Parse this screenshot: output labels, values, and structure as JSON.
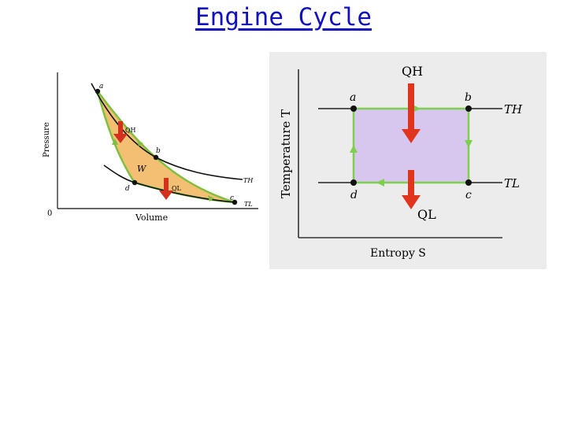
{
  "title": "Engine Cycle",
  "pv_diagram": {
    "x_axis_label": "Volume",
    "y_axis_label": "Pressure",
    "origin_label": "0",
    "points": [
      "a",
      "b",
      "c",
      "d"
    ],
    "work_label": "W",
    "heat_in_label": "QH",
    "heat_out_label": "QL",
    "isotherm_hot_label": "TH",
    "isotherm_cold_label": "TL",
    "cycle_fill_color": "#f3bf72",
    "cycle_path_color": "#7fbf3f",
    "arrow_color": "#d4301e"
  },
  "ts_diagram": {
    "x_axis_label": "Entropy S",
    "y_axis_label": "Temperature T",
    "points": [
      "a",
      "b",
      "c",
      "d"
    ],
    "heat_in_label": "QH",
    "heat_out_label": "QL",
    "hot_temp_label": "TH",
    "cold_temp_label": "TL",
    "cycle_fill_color": "#d7c7ee",
    "cycle_path_color": "#7fcf4f",
    "arrow_color": "#e0341c"
  }
}
